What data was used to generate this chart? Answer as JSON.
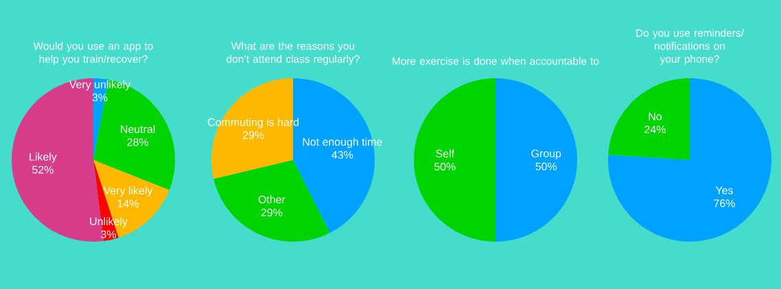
{
  "chart_data": [
    {
      "type": "pie",
      "title": "Would you use an app to help you train/recover?",
      "categories": [
        "Very unlikely",
        "Neutral",
        "Very likely",
        "Unlikely",
        "Likely"
      ],
      "values": [
        3,
        28,
        14,
        3,
        52
      ],
      "value_labels": [
        "3%",
        "28%",
        "14%",
        "3%",
        "52%"
      ],
      "colors": [
        "#00a2ff",
        "#00d400",
        "#ffb800",
        "#ff0000",
        "#d63c8a"
      ]
    },
    {
      "type": "pie",
      "title": "What are the reasons you don’t attend class regularly?",
      "categories": [
        "Not enough time",
        "Other",
        "Commuting is hard"
      ],
      "values": [
        43,
        29,
        29
      ],
      "value_labels": [
        "43%",
        "29%",
        "29%"
      ],
      "colors": [
        "#00a2ff",
        "#00d400",
        "#ffb800"
      ]
    },
    {
      "type": "pie",
      "title": "More exercise is done when accountable to",
      "categories": [
        "Group",
        "Self"
      ],
      "values": [
        50,
        50
      ],
      "value_labels": [
        "50%",
        "50%"
      ],
      "colors": [
        "#00a2ff",
        "#00d400"
      ]
    },
    {
      "type": "pie",
      "title": "Do you use reminders/ notifications on your phone?",
      "categories": [
        "Yes",
        "No"
      ],
      "values": [
        76,
        24
      ],
      "value_labels": [
        "76%",
        "24%"
      ],
      "colors": [
        "#00a2ff",
        "#00d400"
      ]
    }
  ]
}
